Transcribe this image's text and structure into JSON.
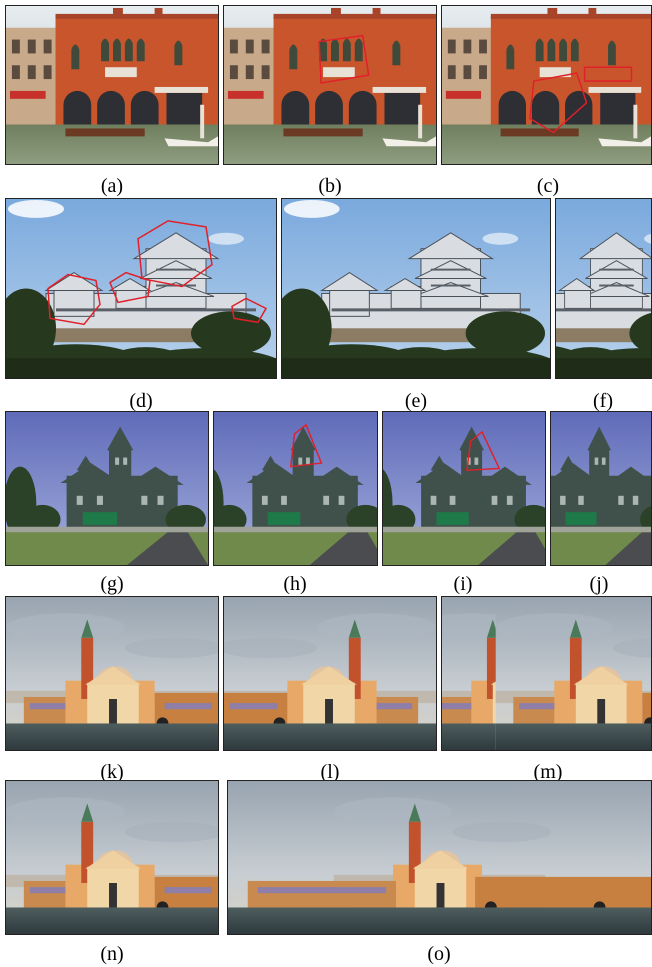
{
  "figure": {
    "captions": [
      "(a)",
      "(b)",
      "(c)",
      "(d)",
      "(e)",
      "(f)",
      "(g)",
      "(h)",
      "(i)",
      "(j)",
      "(k)",
      "(l)",
      "(m)",
      "(n)",
      "(o)"
    ]
  },
  "colors": {
    "annotation_outline": "#e0202a",
    "sky_venice": "#cfd8df",
    "facade": "#c9552c",
    "sky_castle": "#8fb6e2",
    "sky_mansion": "#7f88c8",
    "sky_church": "#b9c3cc",
    "church_wall": "#f1d6a8",
    "water": "#3b4a4e"
  }
}
